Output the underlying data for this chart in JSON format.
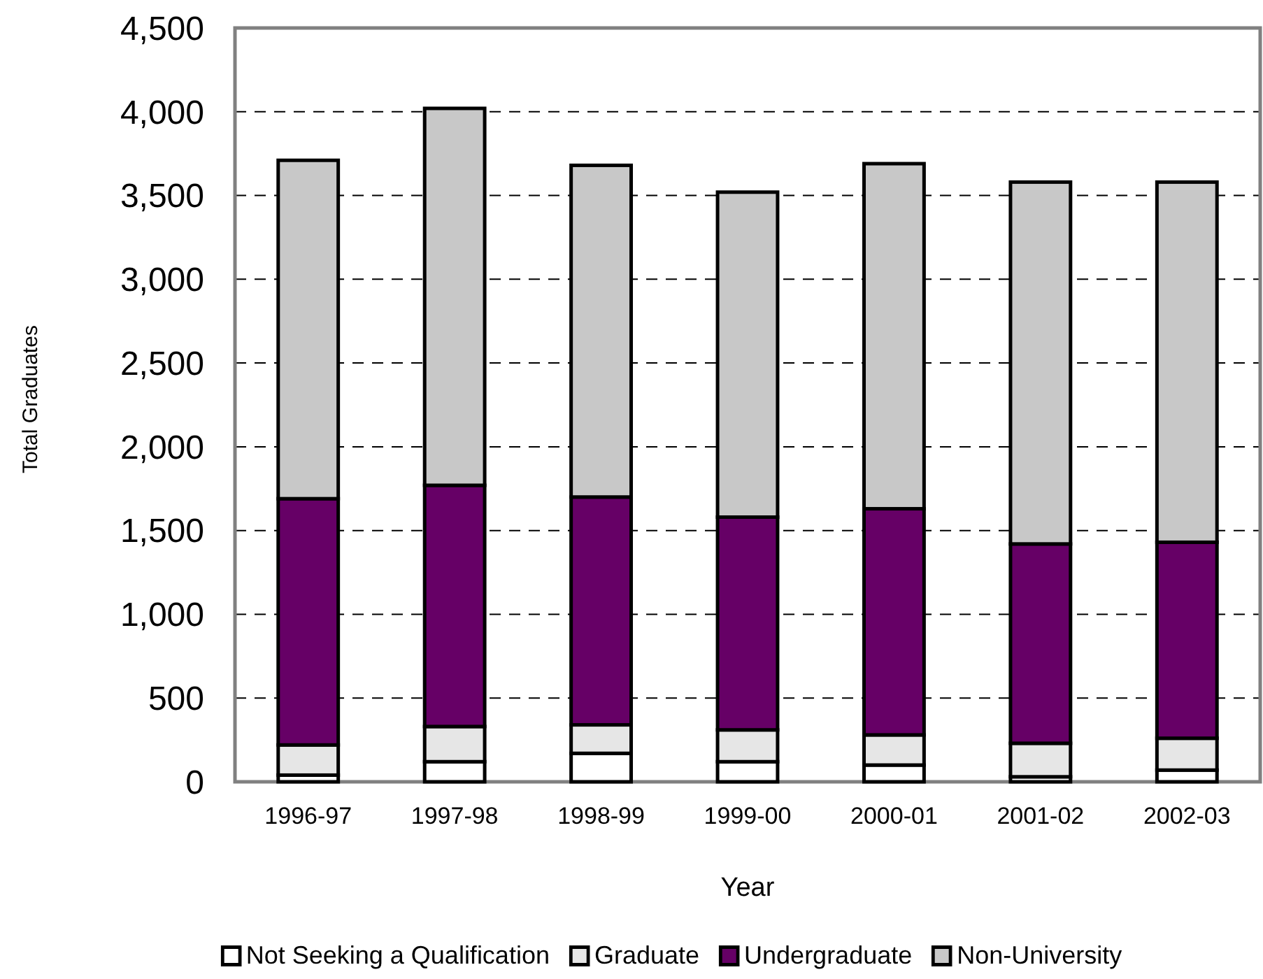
{
  "chart_data": {
    "type": "bar",
    "stacked": true,
    "xlabel": "Year",
    "ylabel": "Total Graduates",
    "categories": [
      "1996-97",
      "1997-98",
      "1998-99",
      "1999-00",
      "2000-01",
      "2001-02",
      "2002-03"
    ],
    "series": [
      {
        "name": "Not Seeking a Qualification",
        "color": "#ffffff",
        "values": [
          40,
          120,
          170,
          120,
          100,
          30,
          70
        ]
      },
      {
        "name": "Graduate",
        "color": "#e6e6e6",
        "values": [
          180,
          210,
          170,
          190,
          180,
          200,
          190
        ]
      },
      {
        "name": "Undergraduate",
        "color": "#660066",
        "values": [
          1470,
          1440,
          1360,
          1270,
          1350,
          1190,
          1170
        ]
      },
      {
        "name": "Non-University",
        "color": "#c8c8c8",
        "values": [
          2020,
          2250,
          1980,
          1940,
          2060,
          2160,
          2150
        ]
      }
    ],
    "ylim": [
      0,
      4500
    ],
    "yticks": [
      0,
      500,
      {
        "value": 1000,
        "label": "1,000"
      },
      {
        "value": 1500,
        "label": "1,500"
      },
      {
        "value": 2000,
        "label": "2,000"
      },
      {
        "value": 2500,
        "label": "2,500"
      },
      {
        "value": 3000,
        "label": "3,000"
      },
      {
        "value": 3500,
        "label": "3,500"
      },
      {
        "value": 4000,
        "label": "4,000"
      },
      {
        "value": 4500,
        "label": "4,500"
      }
    ],
    "grid": "y",
    "legend": "bottom"
  }
}
